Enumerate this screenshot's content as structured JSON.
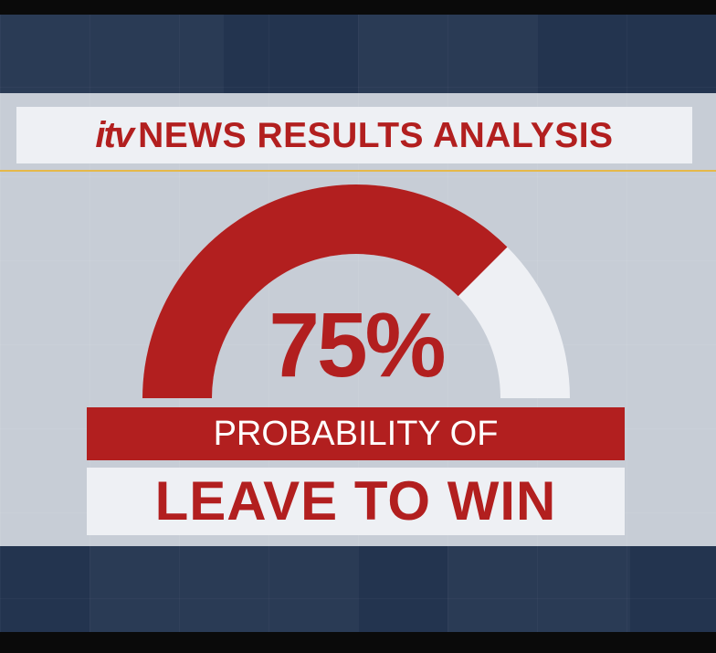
{
  "header": {
    "logo": "itv",
    "title": "NEWS RESULTS ANALYSIS"
  },
  "gauge": {
    "value_percent": 75,
    "display": "75%",
    "fill_color": "#b21f1f",
    "track_color": "#eef0f4"
  },
  "caption": {
    "line1": "PROBABILITY OF",
    "line2": "LEAVE TO WIN"
  },
  "colors": {
    "brand_red": "#b21f1f",
    "panel": "#c7cdd6",
    "accent_gold": "#e5b84a",
    "backdrop": "#23344f"
  }
}
